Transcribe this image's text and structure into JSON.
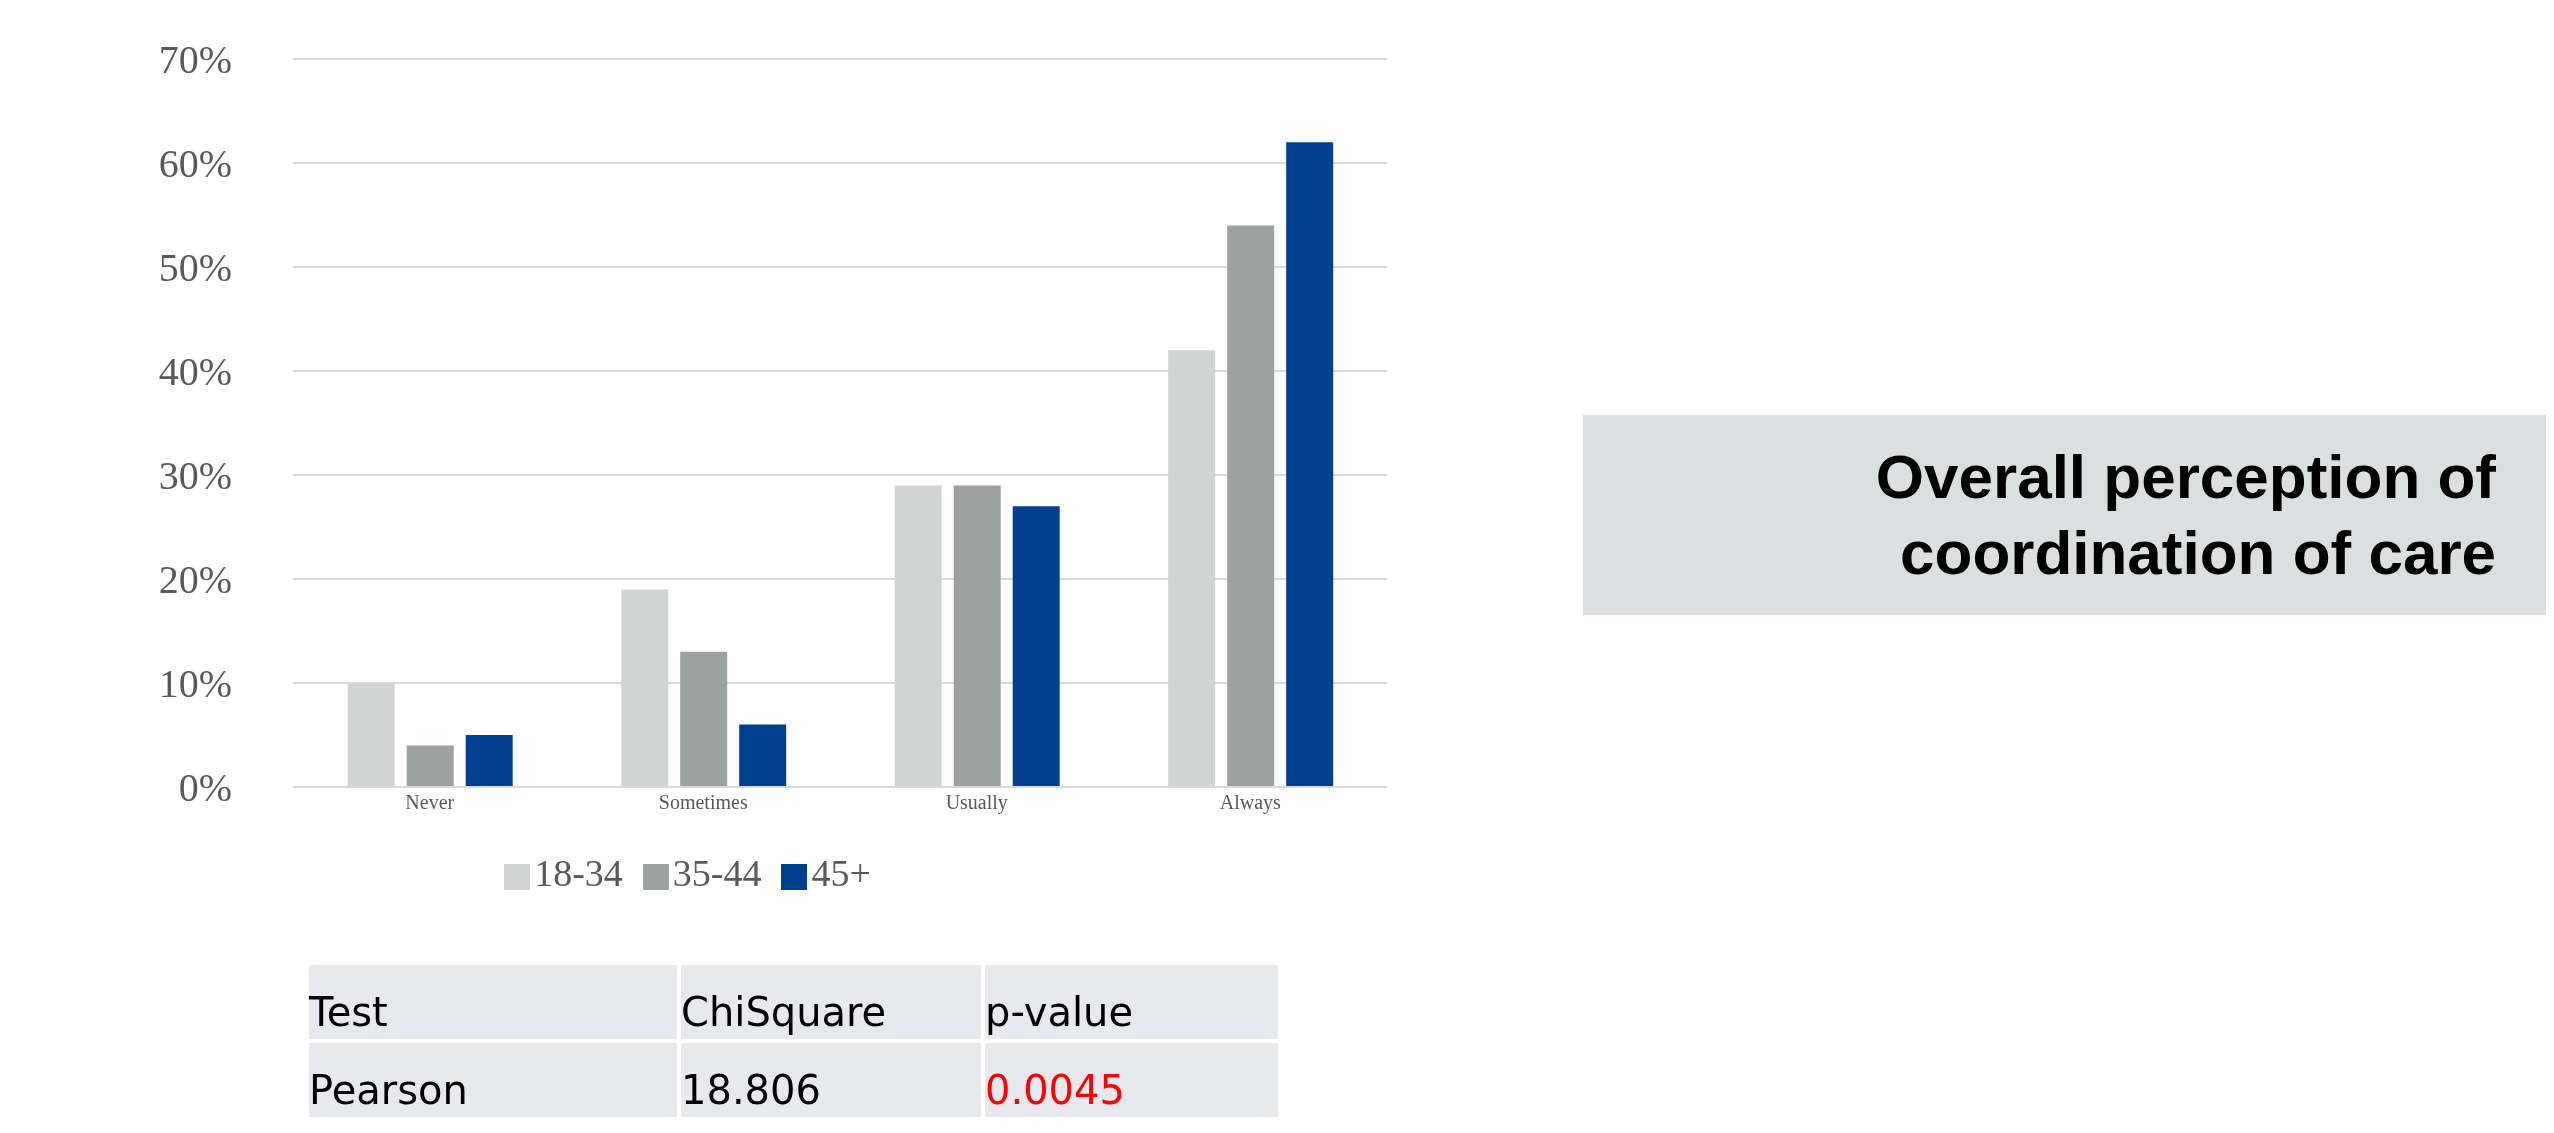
{
  "chart_data": {
    "type": "bar",
    "title": "Overall perception of coordination of care",
    "categories": [
      "Never",
      "Sometimes",
      "Usually",
      "Always"
    ],
    "series": [
      {
        "name": "18-34",
        "color": "#d3d5d4",
        "values": [
          10,
          19,
          29,
          42
        ]
      },
      {
        "name": "35-44",
        "color": "#9da1a0",
        "values": [
          4,
          13,
          29,
          54
        ]
      },
      {
        "name": "45+",
        "color": "#00408f",
        "values": [
          5,
          6,
          27,
          62
        ]
      }
    ],
    "ylim": [
      0,
      70
    ],
    "yticks": [
      {
        "value": 0,
        "label": "0%"
      },
      {
        "value": 10,
        "label": "10%"
      },
      {
        "value": 20,
        "label": "20%"
      },
      {
        "value": 30,
        "label": "30%"
      },
      {
        "value": 40,
        "label": "40%"
      },
      {
        "value": 50,
        "label": "50%"
      },
      {
        "value": 60,
        "label": "60%"
      },
      {
        "value": 70,
        "label": "70%"
      }
    ],
    "grid": "y",
    "legend": "bottom",
    "annotations": [
      "Test",
      "ChiSquare",
      "p-value",
      "Pearson",
      "18.806",
      "0.0045"
    ]
  }
}
